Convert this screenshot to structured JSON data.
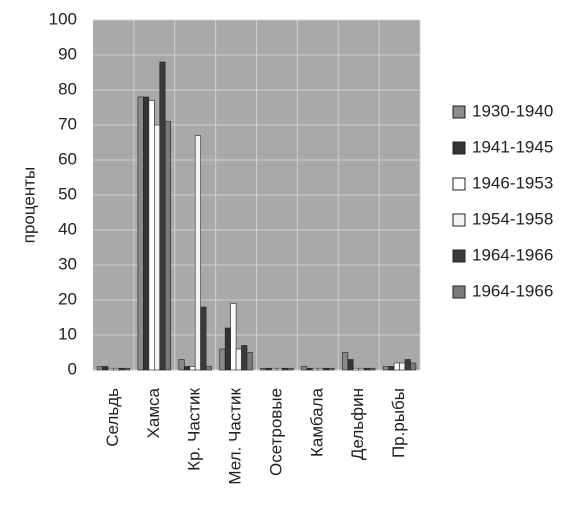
{
  "chart_data": {
    "type": "bar",
    "y_label": "проценты",
    "categories": [
      "Сельдь",
      "Хамса",
      "Кр. Частик",
      "Мел. Частик",
      "Осетровые",
      "Камбала",
      "Дельфин",
      "Пр.рыбы"
    ],
    "series": [
      {
        "name": "1930-1940",
        "color": "#8a8a8a",
        "values": [
          1,
          78,
          3,
          6,
          0.5,
          1,
          5,
          1
        ]
      },
      {
        "name": "1941-1945",
        "color": "#333333",
        "values": [
          1,
          78,
          1,
          12,
          0.5,
          0.5,
          3,
          1
        ]
      },
      {
        "name": "1946-1953",
        "color": "#ffffff",
        "values": [
          0.5,
          77,
          1,
          19,
          0.5,
          0.5,
          0.5,
          2
        ]
      },
      {
        "name": "1954-1958",
        "color": "#f4f4f4",
        "values": [
          0.5,
          70,
          67,
          6,
          0.5,
          0.5,
          0.5,
          2
        ]
      },
      {
        "name": "1964-1966",
        "color": "#3a3a3a",
        "values": [
          0.5,
          88,
          18,
          7,
          0.5,
          0.5,
          0.5,
          3
        ]
      },
      {
        "name": "1964-1966",
        "color": "#7a7a7a",
        "values": [
          0.5,
          71,
          1,
          5,
          0.5,
          0.5,
          0.5,
          2
        ]
      }
    ],
    "ylim": [
      0,
      100
    ],
    "yticks": [
      0,
      10,
      20,
      30,
      40,
      50,
      60,
      70,
      80,
      90,
      100
    ],
    "grid": true,
    "legend": "right"
  }
}
